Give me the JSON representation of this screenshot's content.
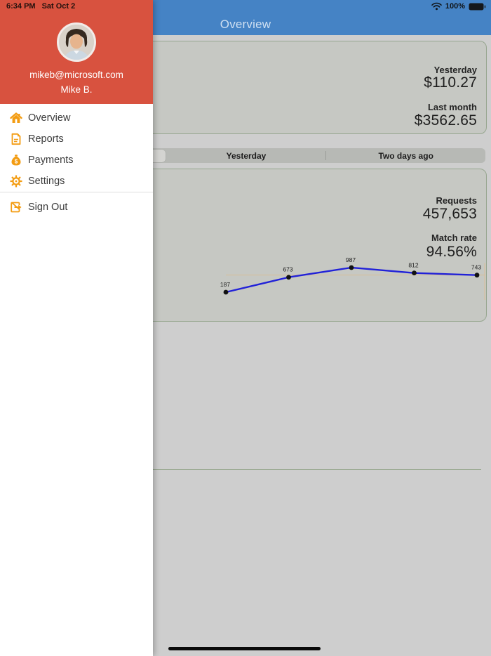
{
  "status_bar": {
    "time": "6:34 PM",
    "date": "Sat Oct 2",
    "battery_percent": "100%"
  },
  "nav_bar": {
    "title": "Overview",
    "background_color": "#4583c5"
  },
  "sidebar": {
    "header_color": "#d8523f",
    "icon_color": "#f39c12",
    "email": "mikeb@microsoft.com",
    "name": "Mike B.",
    "items": [
      {
        "label": "Overview",
        "icon": "home-icon"
      },
      {
        "label": "Reports",
        "icon": "report-icon"
      },
      {
        "label": "Payments",
        "icon": "moneybag-icon"
      },
      {
        "label": "Settings",
        "icon": "gear-icon"
      }
    ],
    "sign_out": {
      "label": "Sign Out",
      "icon": "sign-out-icon"
    }
  },
  "earnings_card": {
    "rows": [
      {
        "label": "Yesterday",
        "value": "$110.27"
      },
      {
        "label": "Last month",
        "value": "$3562.65"
      }
    ]
  },
  "segmented_control": {
    "visible_options": [
      "Yesterday",
      "Two days ago"
    ]
  },
  "stats_card": {
    "rows": [
      {
        "label": "Requests",
        "value": "457,653"
      },
      {
        "label": "Match rate",
        "value": "94.56%"
      }
    ]
  },
  "chart_data": {
    "type": "line",
    "x": [
      1,
      2,
      3,
      4,
      5
    ],
    "values": [
      187,
      673,
      987,
      812,
      743
    ],
    "point_labels": [
      "187",
      "673",
      "987",
      "812",
      "743"
    ],
    "title": "",
    "xlabel": "",
    "ylabel": "",
    "legend": false,
    "grid": false,
    "line_color": "#2121d8",
    "point_color": "#111111",
    "ref_line_color": "#d9be97",
    "ref_value": 743
  }
}
